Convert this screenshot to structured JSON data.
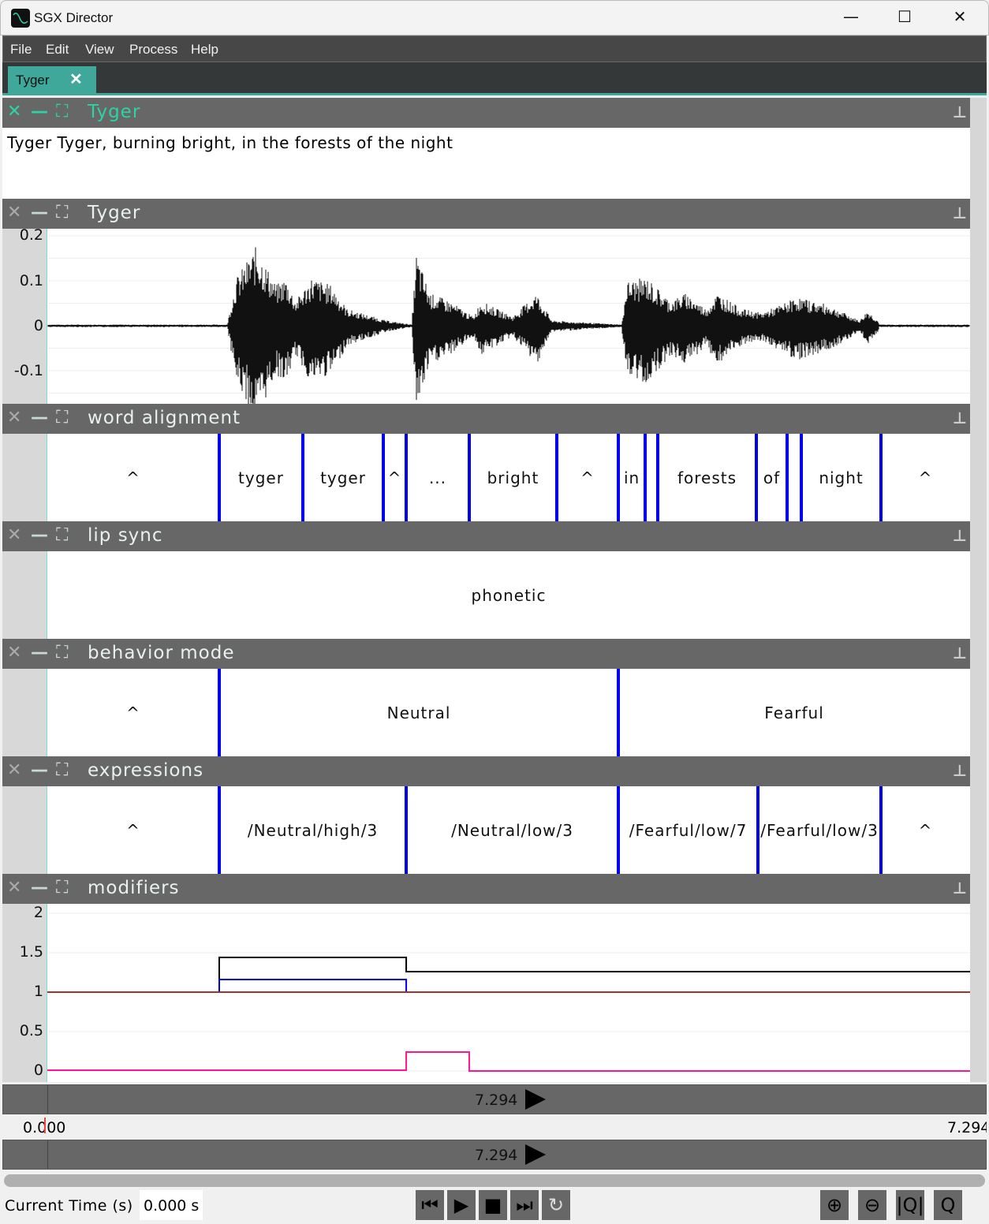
{
  "window": {
    "title": "SGX Director",
    "minimize": "—",
    "maximize": "☐",
    "close": "✕"
  },
  "menu": [
    "File",
    "Edit",
    "View",
    "Process",
    "Help"
  ],
  "tab": {
    "label": "Tyger",
    "close": "✕"
  },
  "panel_icons": {
    "close": "✕",
    "minimize": "—",
    "maximize": "⛶",
    "pin": "📌"
  },
  "colors": {
    "accent": "#3fa89b",
    "active_title": "#2ed3a5",
    "boundary": "#0000ee"
  },
  "panels": {
    "text": {
      "title": "Tyger",
      "content": "Tyger Tyger, burning bright, in the forests of the night"
    },
    "waveform": {
      "title": "Tyger",
      "yticks": [
        "0.2",
        "0.1",
        "0",
        "-0.1"
      ]
    },
    "word": {
      "title": "word alignment"
    },
    "lip": {
      "title": "lip sync",
      "content": "phonetic"
    },
    "behavior": {
      "title": "behavior mode"
    },
    "expressions": {
      "title": "expressions"
    },
    "modifiers": {
      "title": "modifiers",
      "yticks": [
        "2",
        "1.5",
        "1",
        "0.5",
        "0"
      ]
    }
  },
  "duration": 7.294,
  "tiers": {
    "word": {
      "labels": [
        "^",
        "tyger",
        "tyger",
        "^",
        "...",
        "bright",
        "^",
        "in",
        "",
        "forests",
        "of",
        "",
        "night",
        "^"
      ],
      "bounds": [
        1.359,
        2.02,
        2.656,
        2.837,
        3.335,
        4.027,
        4.514,
        4.726,
        4.825,
        5.605,
        5.848,
        5.96,
        6.59
      ]
    },
    "behavior": {
      "labels": [
        "^",
        "Neutral",
        "Fearful"
      ],
      "bounds": [
        1.359,
        4.514
      ]
    },
    "expressions": {
      "labels": [
        "^",
        "/Neutral/high/3",
        "/Neutral/low/3",
        "/Fearful/low/7",
        "/Fearful/low/3",
        "^"
      ],
      "bounds": [
        1.359,
        2.837,
        4.514,
        5.617,
        6.59
      ]
    }
  },
  "modifiers_chart": {
    "type": "line",
    "ylim": [
      0,
      2
    ],
    "xlim": [
      0,
      7.294
    ],
    "series": [
      {
        "color": "#000000",
        "points": [
          [
            0,
            1.0
          ],
          [
            1.359,
            1.0
          ],
          [
            1.359,
            1.44
          ],
          [
            2.837,
            1.44
          ],
          [
            2.837,
            1.26
          ],
          [
            7.294,
            1.26
          ]
        ]
      },
      {
        "color": "#0000ee",
        "points": [
          [
            0,
            1.0
          ],
          [
            1.359,
            1.0
          ],
          [
            1.359,
            1.16
          ],
          [
            2.837,
            1.16
          ],
          [
            2.837,
            1.0
          ],
          [
            7.294,
            1.0
          ]
        ]
      },
      {
        "color": "#a0342a",
        "points": [
          [
            0,
            1.0
          ],
          [
            7.294,
            1.0
          ]
        ]
      },
      {
        "color": "#ff1493",
        "points": [
          [
            0,
            0.01
          ],
          [
            2.837,
            0.01
          ],
          [
            2.837,
            0.24
          ],
          [
            3.335,
            0.24
          ],
          [
            3.335,
            0.0
          ],
          [
            7.294,
            0.0
          ]
        ]
      }
    ]
  },
  "timeline": {
    "top_value": "7.294",
    "start": "0.000",
    "end": "7.294",
    "bottom_value": "7.294"
  },
  "footer": {
    "current_time_label": "Current Time (s)",
    "current_time_value": "0.000 s"
  }
}
